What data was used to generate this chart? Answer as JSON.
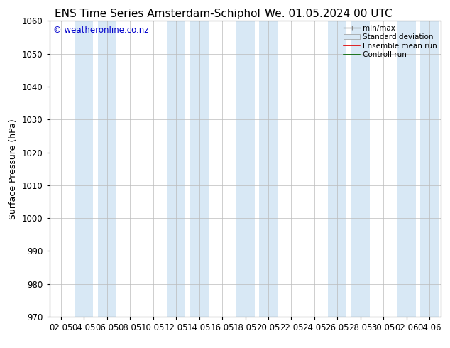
{
  "title_left": "ENS Time Series Amsterdam-Schiphol",
  "title_right": "We. 01.05.2024 00 UTC",
  "ylabel": "Surface Pressure (hPa)",
  "ylim": [
    970,
    1060
  ],
  "yticks": [
    970,
    980,
    990,
    1000,
    1010,
    1020,
    1030,
    1040,
    1050,
    1060
  ],
  "x_labels": [
    "02.05",
    "04.05",
    "06.05",
    "08.05",
    "10.05",
    "12.05",
    "14.05",
    "16.05",
    "18.05",
    "20.05",
    "22.05",
    "24.05",
    "26.05",
    "28.05",
    "30.05",
    "02.06",
    "04.06"
  ],
  "watermark": "© weatheronline.co.nz",
  "watermark_color": "#0000cc",
  "bg_color": "#ffffff",
  "plot_bg_color": "#ffffff",
  "shaded_band_color": "#d8e8f5",
  "shaded_band_alpha": 1.0,
  "title_fontsize": 11,
  "axis_fontsize": 9,
  "tick_fontsize": 8.5,
  "legend_fontsize": 7.5
}
